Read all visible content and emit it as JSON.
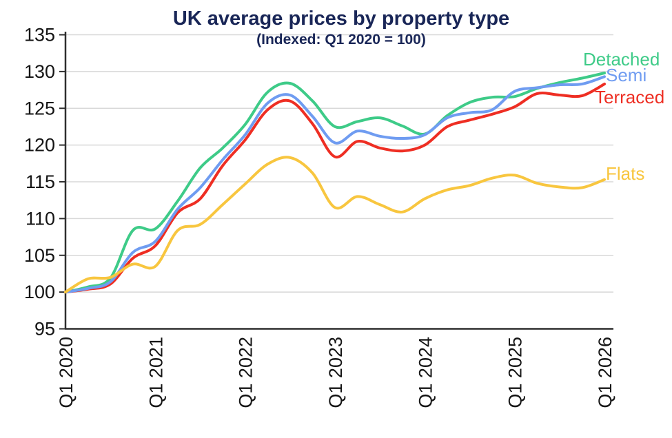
{
  "title": "UK average prices by property type",
  "subtitle": "(Indexed: Q1 2020 = 100)",
  "colors": {
    "title_text": "#192657",
    "axis": "#2e2e2e",
    "grid": "#d8d8d8",
    "tick_text": "#151515",
    "background": "#ffffff",
    "detached": "#3ecb88",
    "semi": "#6f9cf1",
    "terraced": "#ee2e23",
    "flats": "#f8c63f"
  },
  "chart_data": {
    "type": "line",
    "title": "UK average prices by property type",
    "subtitle": "(Indexed: Q1 2020 = 100)",
    "x_unit": "quarter",
    "points_per_year": 4,
    "x_tick_labels": [
      "Q1 2020",
      "Q1 2021",
      "Q1 2022",
      "Q1 2023",
      "Q1 2024",
      "Q1 2025",
      "Q1 2026"
    ],
    "x_quarter_labels": [
      "Q1 2020",
      "Q2 2020",
      "Q3 2020",
      "Q4 2020",
      "Q1 2021",
      "Q2 2021",
      "Q3 2021",
      "Q4 2021",
      "Q1 2022",
      "Q2 2022",
      "Q3 2022",
      "Q4 2022",
      "Q1 2023",
      "Q2 2023",
      "Q3 2023",
      "Q4 2023",
      "Q1 2024",
      "Q2 2024",
      "Q3 2024",
      "Q4 2024",
      "Q1 2025",
      "Q2 2025",
      "Q3 2025",
      "Q4 2025",
      "Q1 2026"
    ],
    "ylim": [
      95,
      135
    ],
    "y_ticks": [
      95,
      100,
      105,
      110,
      115,
      120,
      125,
      130,
      135
    ],
    "grid": "horizontal",
    "legend_position": "right-end-of-line",
    "series": [
      {
        "name": "Detached",
        "color": "#3ecb88",
        "values": [
          100,
          100.7,
          101.9,
          108.4,
          108.6,
          112.4,
          116.9,
          119.6,
          122.8,
          127.2,
          128.4,
          126.0,
          122.5,
          123.2,
          123.7,
          122.6,
          121.5,
          124.0,
          125.8,
          126.5,
          126.6,
          127.7,
          128.5,
          129.1,
          129.8
        ]
      },
      {
        "name": "Semi",
        "color": "#6f9cf1",
        "values": [
          100,
          100.5,
          101.4,
          105.4,
          106.9,
          111.3,
          114.2,
          118.0,
          121.4,
          125.7,
          126.8,
          123.9,
          120.3,
          121.9,
          121.2,
          120.9,
          121.4,
          123.7,
          124.4,
          124.8,
          127.3,
          127.8,
          128.2,
          128.3,
          129.3
        ]
      },
      {
        "name": "Terraced",
        "color": "#ee2e23",
        "values": [
          100,
          100.4,
          101.1,
          104.6,
          106.3,
          110.8,
          112.7,
          117.2,
          120.7,
          124.8,
          126.0,
          122.9,
          118.4,
          120.5,
          119.6,
          119.2,
          120.0,
          122.5,
          123.4,
          124.2,
          125.2,
          127.0,
          126.8,
          126.7,
          128.3
        ]
      },
      {
        "name": "Flats",
        "color": "#f8c63f",
        "values": [
          100,
          101.8,
          102.0,
          103.8,
          103.5,
          108.4,
          109.2,
          111.9,
          114.7,
          117.4,
          118.3,
          116.2,
          111.5,
          113.0,
          111.9,
          110.9,
          112.7,
          113.9,
          114.5,
          115.5,
          115.9,
          114.8,
          114.3,
          114.2,
          115.3
        ]
      }
    ]
  }
}
